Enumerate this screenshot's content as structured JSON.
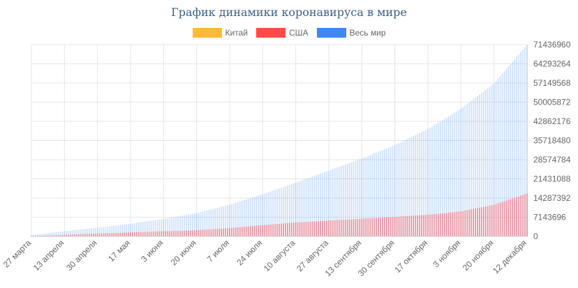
{
  "chart_data": {
    "type": "bar",
    "title": "График динамики коронавируса в мире",
    "series": [
      {
        "name": "Китай",
        "color": "#FFB938"
      },
      {
        "name": "США",
        "color": "#FF4A4A"
      },
      {
        "name": "Весь мир",
        "color": "#3E87F7"
      }
    ],
    "x_tick_labels": [
      "27 марта",
      "13 апреля",
      "30 апреля",
      "17 мая",
      "3 июня",
      "20 июня",
      "7 июля",
      "24 июля",
      "10 августа",
      "27 августа",
      "13 сентября",
      "30 сентября",
      "17 октября",
      "3 ноября",
      "20 ноября",
      "12 декабря"
    ],
    "y_tick_labels": [
      "0",
      "7143696",
      "14287392",
      "21431088",
      "28574784",
      "35718480",
      "42862176",
      "50005872",
      "57149568",
      "64293264",
      "71436960"
    ],
    "ylim": [
      0,
      71436960
    ],
    "x": [
      "27 марта",
      "13 апреля",
      "30 апреля",
      "17 мая",
      "3 июня",
      "20 июня",
      "7 июля",
      "24 июля",
      "10 августа",
      "27 августа",
      "13 сентября",
      "30 сентября",
      "17 октября",
      "3 ноября",
      "20 ноября",
      "12 декабря"
    ],
    "values": {
      "Весь мир": [
        550000,
        1920000,
        3250000,
        4700000,
        6500000,
        8700000,
        11800000,
        15700000,
        20000000,
        24500000,
        29000000,
        34000000,
        40000000,
        47500000,
        57000000,
        71436960
      ],
      "США": [
        90000,
        580000,
        1050000,
        1500000,
        1900000,
        2300000,
        3100000,
        4200000,
        5200000,
        5900000,
        6600000,
        7300000,
        8100000,
        9300000,
        11800000,
        16000000
      ],
      "Китай": [
        81000,
        82000,
        82800,
        82900,
        83000,
        83400,
        83600,
        83700,
        84600,
        85000,
        85200,
        85400,
        85600,
        86000,
        86400,
        86700
      ]
    },
    "bars_per_interval": 16,
    "grid": true,
    "legend_position": "top"
  }
}
